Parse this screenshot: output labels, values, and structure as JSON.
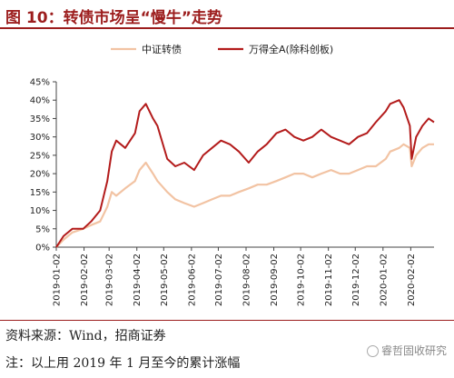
{
  "header": {
    "title": "图 10：转债市场呈“慢牛”走势"
  },
  "footer": {
    "source": "资料来源：Wind，招商证券",
    "note": "注：以上用 2019 年 1 月至今的累计涨幅",
    "watermark": "睿哲固收研究"
  },
  "colors": {
    "brand": "#9c1d1d",
    "series_1": "#f2c3a3",
    "series_2": "#b31b1b"
  },
  "chart_data": {
    "type": "line",
    "title": "",
    "xlabel": "",
    "ylabel": "",
    "ylim": [
      0,
      45
    ],
    "yticks": [
      0,
      5,
      10,
      15,
      20,
      25,
      30,
      35,
      40,
      45
    ],
    "ytick_labels": [
      "0%",
      "5%",
      "10%",
      "15%",
      "20%",
      "25%",
      "30%",
      "35%",
      "40%",
      "45%"
    ],
    "xlim": [
      "2019-01-02",
      "2020-02-28"
    ],
    "xticks": [
      "2019-01-02",
      "2019-02-02",
      "2019-03-02",
      "2019-04-02",
      "2019-05-02",
      "2019-06-02",
      "2019-07-02",
      "2019-08-02",
      "2019-09-02",
      "2019-10-02",
      "2019-11-02",
      "2019-12-02",
      "2020-01-02",
      "2020-02-02"
    ],
    "grid": false,
    "legend_position": "top",
    "series": [
      {
        "name": "中证转债",
        "x": [
          "2019-01-02",
          "2019-01-10",
          "2019-01-20",
          "2019-02-01",
          "2019-02-10",
          "2019-02-20",
          "2019-02-28",
          "2019-03-05",
          "2019-03-10",
          "2019-03-20",
          "2019-03-31",
          "2019-04-05",
          "2019-04-12",
          "2019-04-20",
          "2019-04-25",
          "2019-05-06",
          "2019-05-15",
          "2019-05-25",
          "2019-06-05",
          "2019-06-15",
          "2019-06-25",
          "2019-07-05",
          "2019-07-15",
          "2019-07-25",
          "2019-08-05",
          "2019-08-15",
          "2019-08-25",
          "2019-09-05",
          "2019-09-15",
          "2019-09-25",
          "2019-10-05",
          "2019-10-15",
          "2019-10-25",
          "2019-11-05",
          "2019-11-15",
          "2019-11-25",
          "2019-12-05",
          "2019-12-15",
          "2019-12-25",
          "2020-01-05",
          "2020-01-10",
          "2020-01-20",
          "2020-01-25",
          "2020-02-01",
          "2020-02-03",
          "2020-02-08",
          "2020-02-15",
          "2020-02-22",
          "2020-02-28"
        ],
        "values": [
          0,
          2,
          4,
          5,
          6,
          7,
          11,
          15,
          14,
          16,
          18,
          21,
          23,
          20,
          18,
          15,
          13,
          12,
          11,
          12,
          13,
          14,
          14,
          15,
          16,
          17,
          17,
          18,
          19,
          20,
          20,
          19,
          20,
          21,
          20,
          20,
          21,
          22,
          22,
          24,
          26,
          27,
          28,
          27,
          22,
          25,
          27,
          28,
          28
        ]
      },
      {
        "name": "万得全A(除科创板)",
        "x": [
          "2019-01-02",
          "2019-01-10",
          "2019-01-20",
          "2019-02-01",
          "2019-02-10",
          "2019-02-20",
          "2019-02-28",
          "2019-03-05",
          "2019-03-10",
          "2019-03-20",
          "2019-03-31",
          "2019-04-05",
          "2019-04-12",
          "2019-04-20",
          "2019-04-25",
          "2019-05-06",
          "2019-05-15",
          "2019-05-25",
          "2019-06-05",
          "2019-06-15",
          "2019-06-25",
          "2019-07-05",
          "2019-07-15",
          "2019-07-25",
          "2019-08-05",
          "2019-08-15",
          "2019-08-25",
          "2019-09-05",
          "2019-09-15",
          "2019-09-25",
          "2019-10-05",
          "2019-10-15",
          "2019-10-25",
          "2019-11-05",
          "2019-11-15",
          "2019-11-25",
          "2019-12-05",
          "2019-12-15",
          "2019-12-25",
          "2020-01-05",
          "2020-01-10",
          "2020-01-20",
          "2020-01-25",
          "2020-02-01",
          "2020-02-03",
          "2020-02-08",
          "2020-02-15",
          "2020-02-22",
          "2020-02-28"
        ],
        "values": [
          0,
          3,
          5,
          5,
          7,
          10,
          18,
          26,
          29,
          27,
          31,
          37,
          39,
          35,
          33,
          24,
          22,
          23,
          21,
          25,
          27,
          29,
          28,
          26,
          23,
          26,
          28,
          31,
          32,
          30,
          29,
          30,
          32,
          30,
          29,
          28,
          30,
          31,
          34,
          37,
          39,
          40,
          38,
          33,
          24,
          30,
          33,
          35,
          34
        ]
      }
    ]
  }
}
